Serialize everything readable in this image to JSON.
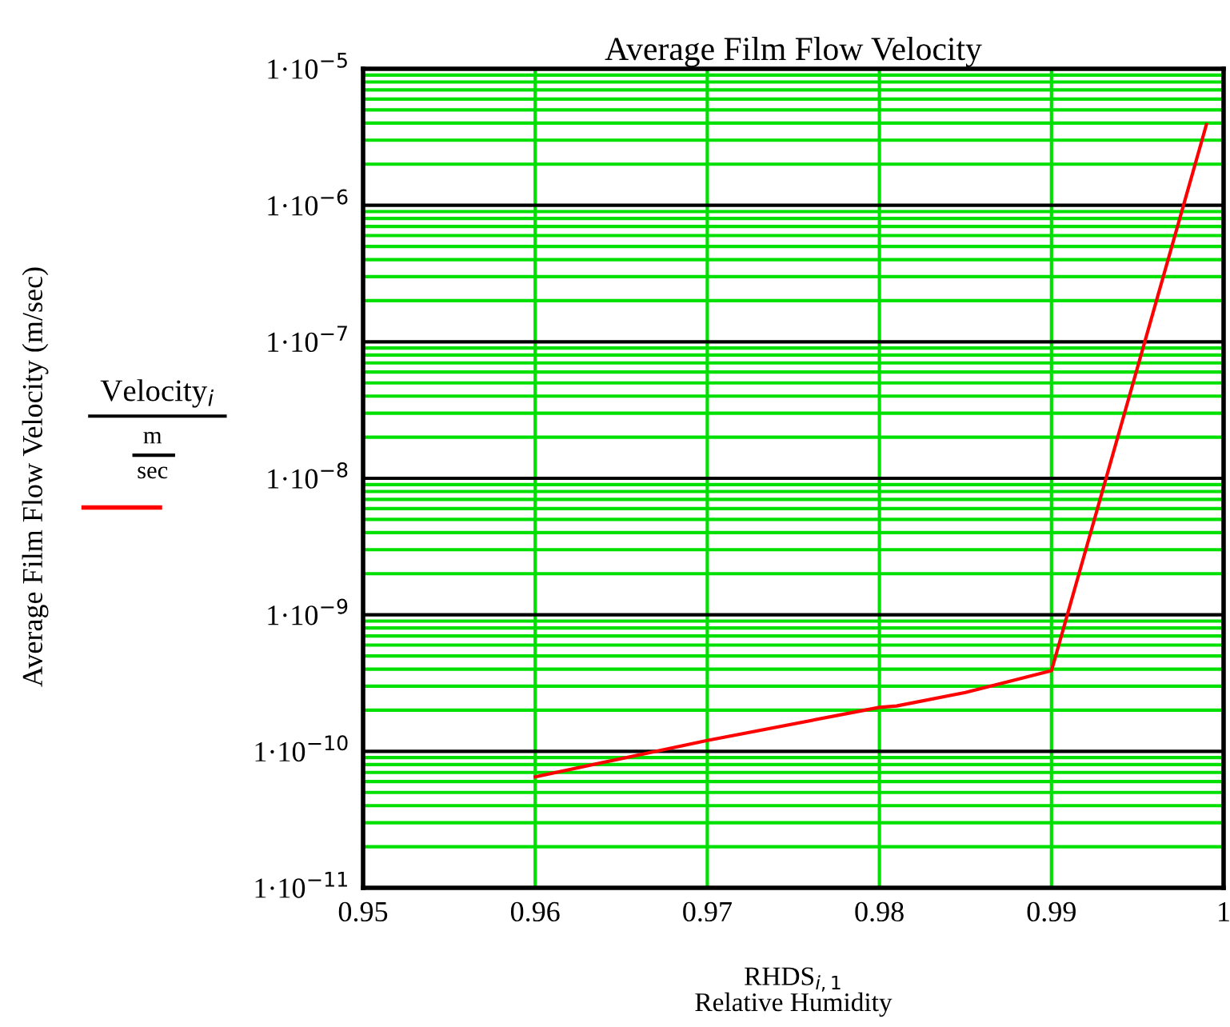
{
  "chart_data": {
    "type": "line",
    "title": "Average Film Flow Velocity",
    "xlabel": "RHDS$_{i,1}$",
    "annotations": [
      "m",
      "sec",
      "Relative Humidity",
      "Average Film Flow Velocity (m/sec)"
    ],
    "series": [
      {
        "name": "Velocity$_{i}$",
        "color": "#ff0000",
        "x": [
          0.96,
          0.97,
          0.98,
          0.981,
          0.985,
          0.99,
          0.999
        ],
        "values": [
          6.5e-11,
          1.2e-10,
          2.1e-10,
          2.15e-10,
          2.7e-10,
          3.9e-10,
          3.9e-06
        ]
      }
    ],
    "log": "y",
    "xlim": [
      0.95,
      1
    ],
    "xticks": [
      0.95,
      0.96,
      0.97,
      0.98,
      0.99,
      1
    ],
    "ylim": [
      1e-11,
      1e-05
    ],
    "yticks": [
      {
        "value": 1e-11,
        "label": "1·10$^{−11}$"
      },
      {
        "value": 1e-10,
        "label": "1·10$^{−10}$"
      },
      {
        "value": 1e-09,
        "label": "1·10$^{−9}$"
      },
      {
        "value": 1e-08,
        "label": "1·10$^{−8}$"
      },
      {
        "value": 1e-07,
        "label": "1·10$^{−7}$"
      },
      {
        "value": 1e-06,
        "label": "1·10$^{−6}$"
      },
      {
        "value": 1e-05,
        "label": "1·10$^{−5}$"
      }
    ],
    "grid": true,
    "legend": "left",
    "marker": "none",
    "line_style": "solid"
  }
}
